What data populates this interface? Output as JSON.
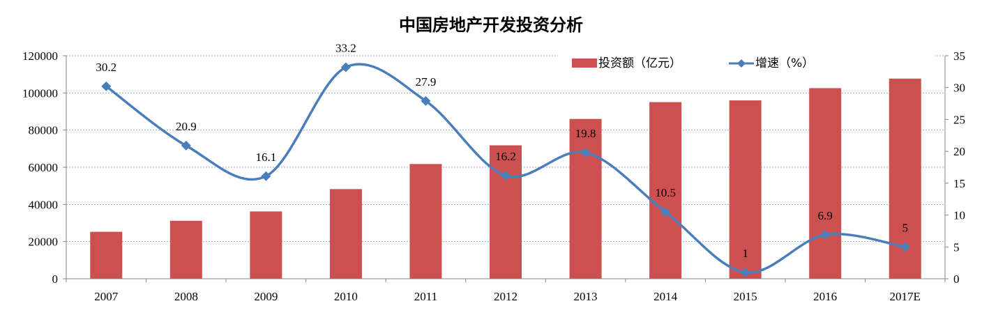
{
  "chart_data": {
    "type": "bar+line",
    "title": "中国房地产开发投资分析",
    "categories": [
      "2007",
      "2008",
      "2009",
      "2010",
      "2011",
      "2012",
      "2013",
      "2014",
      "2015",
      "2016",
      "2017E"
    ],
    "series": [
      {
        "name": "投资额（亿元）",
        "type": "bar",
        "axis": "left",
        "color": "#CD5050",
        "values": [
          25280,
          31200,
          36230,
          48260,
          61740,
          71800,
          86010,
          95040,
          95980,
          102580,
          107700
        ]
      },
      {
        "name": "增速（%）",
        "type": "line",
        "axis": "right",
        "color": "#4A7EBB",
        "smooth": true,
        "marker": "diamond",
        "values": [
          30.2,
          20.9,
          16.1,
          33.2,
          27.9,
          16.2,
          19.8,
          10.5,
          1,
          6.9,
          5
        ],
        "labels": [
          "30.2",
          "20.9",
          "16.1",
          "33.2",
          "27.9",
          "16.2",
          "19.8",
          "10.5",
          "1",
          "6.9",
          "5"
        ]
      }
    ],
    "y_left": {
      "min": 0,
      "max": 120000,
      "ticks": [
        "0",
        "20000",
        "40000",
        "60000",
        "80000",
        "100000",
        "120000"
      ]
    },
    "y_right": {
      "min": 0,
      "max": 35,
      "ticks": [
        "0",
        "5",
        "10",
        "15",
        "20",
        "25",
        "30",
        "35"
      ]
    },
    "grid": true,
    "legend": "top-right"
  }
}
